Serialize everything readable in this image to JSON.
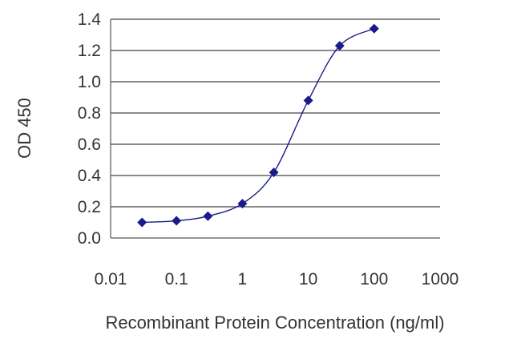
{
  "chart_data": {
    "type": "line",
    "xlabel": "Recombinant Protein Concentration (ng/ml)",
    "ylabel": "OD 450",
    "x_scale": "log",
    "xlim": [
      0.01,
      1000
    ],
    "ylim": [
      0.0,
      1.4
    ],
    "x_ticks": [
      "0.01",
      "0.1",
      "1",
      "10",
      "100",
      "1000"
    ],
    "y_ticks": [
      "0.0",
      "0.2",
      "0.4",
      "0.6",
      "0.8",
      "1.0",
      "1.2",
      "1.4"
    ],
    "grid": "horizontal",
    "series": [
      {
        "color": "#1a1a8c",
        "marker": "diamond",
        "x": [
          0.03,
          0.1,
          0.3,
          1,
          3,
          10,
          30,
          100
        ],
        "y": [
          0.1,
          0.11,
          0.14,
          0.22,
          0.42,
          0.88,
          1.23,
          1.34
        ]
      }
    ]
  }
}
